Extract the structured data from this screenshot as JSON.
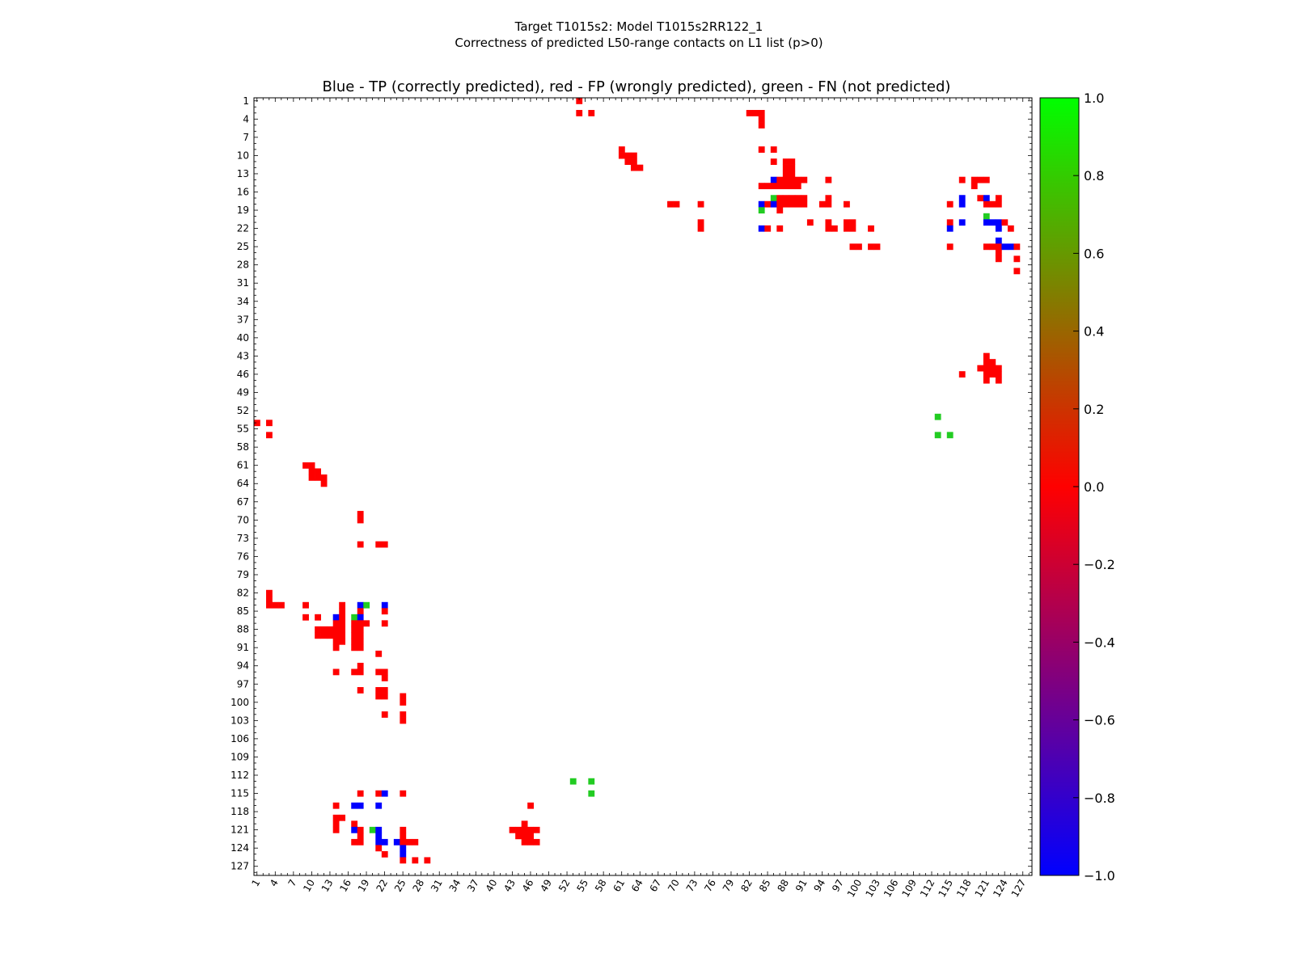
{
  "figure": {
    "title_line1": "Target T1015s2: Model T1015s2RR122_1",
    "title_line2": "Correctness of predicted L50-range contacts on L1 list (p>0)"
  },
  "chart_data": {
    "type": "heatmap",
    "title": "Blue - TP (correctly predicted), red - FP (wrongly predicted), green - FN (not predicted)",
    "xlabel": "",
    "ylabel": "",
    "x_range": [
      1,
      128
    ],
    "y_range": [
      1,
      128
    ],
    "y_inverted": true,
    "tick_labels": [
      "1",
      "4",
      "7",
      "10",
      "13",
      "16",
      "19",
      "22",
      "25",
      "28",
      "31",
      "34",
      "37",
      "40",
      "43",
      "46",
      "49",
      "52",
      "55",
      "58",
      "61",
      "64",
      "67",
      "70",
      "73",
      "76",
      "79",
      "82",
      "85",
      "88",
      "91",
      "94",
      "97",
      "100",
      "103",
      "106",
      "109",
      "112",
      "115",
      "118",
      "121",
      "124",
      "127"
    ],
    "legend": {
      "TP": "blue",
      "FP": "red",
      "FN": "green"
    },
    "colorbar": {
      "min": -1.0,
      "max": 1.0,
      "ticks": [
        "-1.0",
        "-0.8",
        "-0.6",
        "-0.4",
        "-0.2",
        "0.0",
        "0.2",
        "0.4",
        "0.6",
        "0.8",
        "1.0"
      ],
      "stops": [
        "#0000ff",
        "#ff0000",
        "#00ff00"
      ]
    },
    "category_colors": {
      "tp": "#0000ff",
      "fp": "#ff0000",
      "fn": "#22cc22"
    },
    "upper_cells": [
      [
        1,
        54,
        "fp"
      ],
      [
        3,
        54,
        "fp"
      ],
      [
        3,
        56,
        "fp"
      ],
      [
        3,
        82,
        "fp"
      ],
      [
        3,
        83,
        "fp"
      ],
      [
        3,
        84,
        "fp"
      ],
      [
        4,
        84,
        "fp"
      ],
      [
        5,
        84,
        "fp"
      ],
      [
        9,
        61,
        "fp"
      ],
      [
        10,
        61,
        "fp"
      ],
      [
        10,
        62,
        "fp"
      ],
      [
        10,
        63,
        "fp"
      ],
      [
        11,
        62,
        "fp"
      ],
      [
        11,
        63,
        "fp"
      ],
      [
        12,
        63,
        "fp"
      ],
      [
        12,
        64,
        "fp"
      ],
      [
        9,
        84,
        "fp"
      ],
      [
        9,
        86,
        "fp"
      ],
      [
        11,
        86,
        "fp"
      ],
      [
        11,
        88,
        "fp"
      ],
      [
        11,
        89,
        "fp"
      ],
      [
        12,
        88,
        "fp"
      ],
      [
        12,
        89,
        "fp"
      ],
      [
        13,
        88,
        "fp"
      ],
      [
        13,
        89,
        "fp"
      ],
      [
        14,
        86,
        "tp"
      ],
      [
        14,
        87,
        "fp"
      ],
      [
        14,
        88,
        "fp"
      ],
      [
        14,
        89,
        "fp"
      ],
      [
        14,
        90,
        "fp"
      ],
      [
        14,
        91,
        "fp"
      ],
      [
        14,
        95,
        "fp"
      ],
      [
        15,
        84,
        "fp"
      ],
      [
        15,
        85,
        "fp"
      ],
      [
        15,
        86,
        "fp"
      ],
      [
        15,
        87,
        "fp"
      ],
      [
        15,
        88,
        "fp"
      ],
      [
        15,
        89,
        "fp"
      ],
      [
        15,
        90,
        "fp"
      ],
      [
        17,
        86,
        "fn"
      ],
      [
        17,
        87,
        "fp"
      ],
      [
        17,
        88,
        "fp"
      ],
      [
        17,
        89,
        "fp"
      ],
      [
        17,
        90,
        "fp"
      ],
      [
        17,
        91,
        "fp"
      ],
      [
        17,
        95,
        "fp"
      ],
      [
        18,
        69,
        "fp"
      ],
      [
        18,
        70,
        "fp"
      ],
      [
        18,
        74,
        "fp"
      ],
      [
        18,
        84,
        "tp"
      ],
      [
        18,
        85,
        "fp"
      ],
      [
        18,
        86,
        "tp"
      ],
      [
        18,
        87,
        "fp"
      ],
      [
        18,
        88,
        "fp"
      ],
      [
        18,
        89,
        "fp"
      ],
      [
        18,
        90,
        "fp"
      ],
      [
        18,
        91,
        "fp"
      ],
      [
        18,
        94,
        "fp"
      ],
      [
        18,
        95,
        "fp"
      ],
      [
        18,
        98,
        "fp"
      ],
      [
        19,
        84,
        "fn"
      ],
      [
        19,
        87,
        "fp"
      ],
      [
        21,
        92,
        "fp"
      ],
      [
        21,
        95,
        "fp"
      ],
      [
        22,
        74,
        "fp"
      ],
      [
        22,
        84,
        "tp"
      ],
      [
        22,
        85,
        "fp"
      ],
      [
        22,
        87,
        "fp"
      ],
      [
        22,
        95,
        "fp"
      ],
      [
        22,
        96,
        "fp"
      ],
      [
        21,
        98,
        "fp"
      ],
      [
        21,
        99,
        "fp"
      ],
      [
        22,
        98,
        "fp"
      ],
      [
        22,
        99,
        "fp"
      ],
      [
        22,
        102,
        "fp"
      ],
      [
        21,
        74,
        "fp"
      ],
      [
        25,
        99,
        "fp"
      ],
      [
        25,
        100,
        "fp"
      ],
      [
        25,
        102,
        "fp"
      ],
      [
        25,
        103,
        "fp"
      ],
      [
        14,
        117,
        "fp"
      ],
      [
        14,
        119,
        "fp"
      ],
      [
        14,
        120,
        "fp"
      ],
      [
        14,
        121,
        "fp"
      ],
      [
        15,
        119,
        "fp"
      ],
      [
        17,
        117,
        "tp"
      ],
      [
        17,
        120,
        "fp"
      ],
      [
        17,
        121,
        "tp"
      ],
      [
        17,
        123,
        "fp"
      ],
      [
        18,
        115,
        "fp"
      ],
      [
        18,
        117,
        "tp"
      ],
      [
        18,
        121,
        "fp"
      ],
      [
        18,
        122,
        "fp"
      ],
      [
        18,
        123,
        "fp"
      ],
      [
        20,
        121,
        "fn"
      ],
      [
        21,
        115,
        "fp"
      ],
      [
        21,
        117,
        "tp"
      ],
      [
        21,
        121,
        "tp"
      ],
      [
        21,
        122,
        "tp"
      ],
      [
        21,
        123,
        "tp"
      ],
      [
        21,
        124,
        "fp"
      ],
      [
        22,
        115,
        "tp"
      ],
      [
        22,
        123,
        "tp"
      ],
      [
        22,
        125,
        "fp"
      ],
      [
        24,
        123,
        "tp"
      ],
      [
        25,
        115,
        "fp"
      ],
      [
        25,
        121,
        "fp"
      ],
      [
        25,
        122,
        "fp"
      ],
      [
        25,
        123,
        "fp"
      ],
      [
        25,
        124,
        "tp"
      ],
      [
        25,
        125,
        "tp"
      ],
      [
        25,
        126,
        "fp"
      ],
      [
        26,
        123,
        "fp"
      ],
      [
        27,
        123,
        "fp"
      ],
      [
        27,
        126,
        "fp"
      ],
      [
        29,
        126,
        "fp"
      ],
      [
        43,
        121,
        "fp"
      ],
      [
        44,
        121,
        "fp"
      ],
      [
        44,
        122,
        "fp"
      ],
      [
        45,
        120,
        "fp"
      ],
      [
        45,
        121,
        "fp"
      ],
      [
        45,
        122,
        "fp"
      ],
      [
        45,
        123,
        "fp"
      ],
      [
        46,
        117,
        "fp"
      ],
      [
        46,
        121,
        "fp"
      ],
      [
        46,
        122,
        "fp"
      ],
      [
        46,
        123,
        "fp"
      ],
      [
        47,
        121,
        "fp"
      ],
      [
        47,
        123,
        "fp"
      ],
      [
        53,
        113,
        "fn"
      ],
      [
        56,
        113,
        "fn"
      ],
      [
        56,
        115,
        "fn"
      ]
    ]
  }
}
